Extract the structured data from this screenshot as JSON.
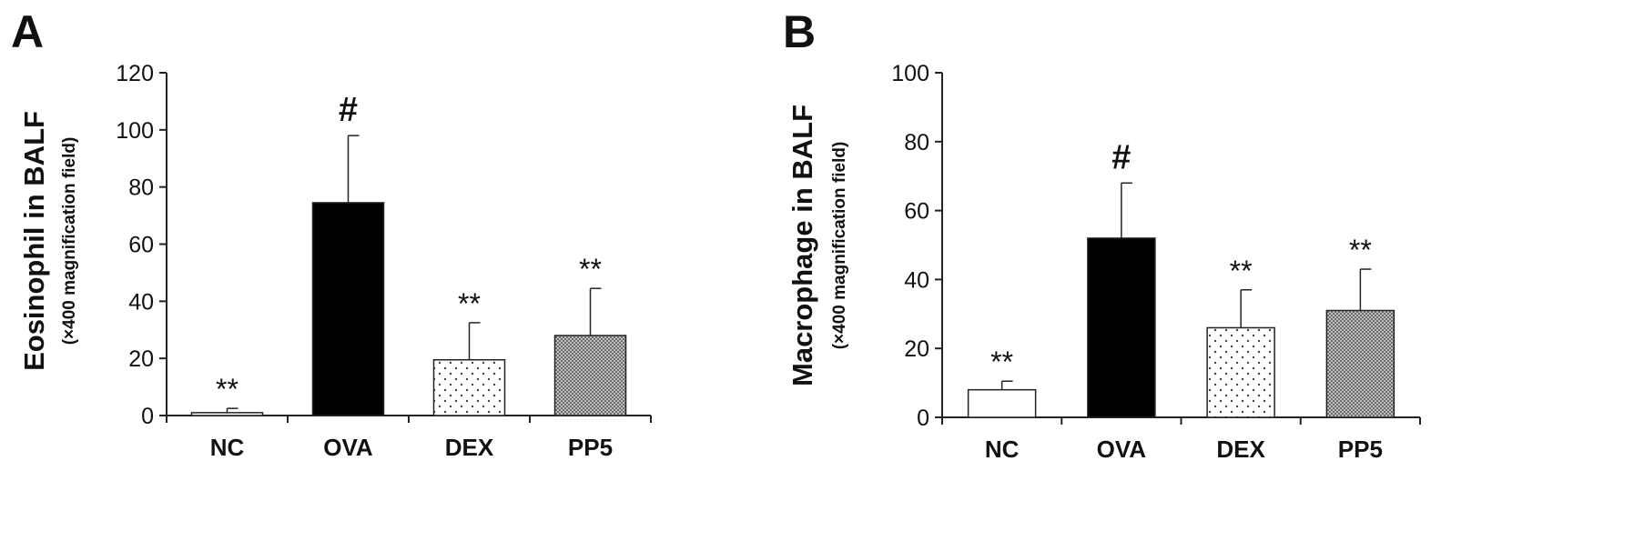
{
  "chart_data": [
    {
      "type": "bar",
      "panel": "A",
      "ylabel": "Eosinophil in BALF",
      "ylabel_sub": "(×400 magnification field)",
      "categories": [
        "NC",
        "OVA",
        "DEX",
        "PP5"
      ],
      "values": [
        1,
        74.5,
        19.5,
        28
      ],
      "errors": [
        1.5,
        23.5,
        13,
        16.5
      ],
      "annotations": [
        "**",
        "#",
        "**",
        "**"
      ],
      "fills": [
        "white",
        "black",
        "dots",
        "checker"
      ],
      "ylim": [
        0,
        120
      ],
      "yticks": [
        0,
        20,
        40,
        60,
        80,
        100,
        120
      ],
      "grid": false
    },
    {
      "type": "bar",
      "panel": "B",
      "ylabel": "Macrophage in BALF",
      "ylabel_sub": "(×400 magnification field)",
      "categories": [
        "NC",
        "OVA",
        "DEX",
        "PP5"
      ],
      "values": [
        8,
        52,
        26,
        31
      ],
      "errors": [
        2.5,
        16,
        11,
        12
      ],
      "annotations": [
        "**",
        "#",
        "**",
        "**"
      ],
      "fills": [
        "white",
        "black",
        "dots",
        "checker"
      ],
      "ylim": [
        0,
        100
      ],
      "yticks": [
        0,
        20,
        40,
        60,
        80,
        100
      ],
      "grid": false
    }
  ]
}
